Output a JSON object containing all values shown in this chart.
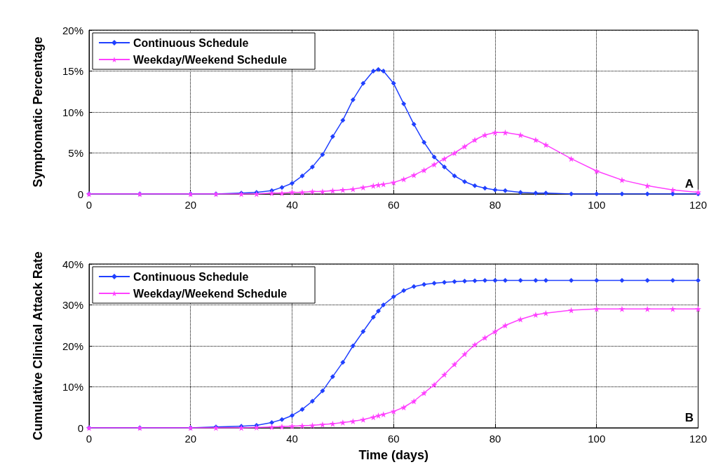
{
  "chart_data": [
    {
      "type": "line",
      "ylabel": "Symptomatic Percentage",
      "annotations": [
        "A"
      ],
      "x": [
        0,
        10,
        20,
        25,
        30,
        33,
        36,
        38,
        40,
        42,
        44,
        46,
        48,
        50,
        52,
        54,
        56,
        57,
        58,
        60,
        62,
        64,
        66,
        68,
        70,
        72,
        74,
        76,
        78,
        80,
        82,
        85,
        88,
        90,
        95,
        100,
        105,
        110,
        115,
        120
      ],
      "series": [
        {
          "name": "Continuous Schedule",
          "color": "#2040ff",
          "marker": "diamond",
          "values": [
            0,
            0,
            0,
            0,
            0.1,
            0.2,
            0.4,
            0.8,
            1.3,
            2.2,
            3.3,
            4.8,
            7,
            9,
            11.5,
            13.5,
            15,
            15.2,
            15,
            13.5,
            11,
            8.5,
            6.3,
            4.5,
            3.3,
            2.2,
            1.5,
            1,
            0.7,
            0.5,
            0.4,
            0.2,
            0.1,
            0.1,
            0,
            0,
            0,
            0,
            0,
            0
          ]
        },
        {
          "name": "Weekday/Weekend Schedule",
          "color": "#ff40ff",
          "marker": "star",
          "values": [
            0,
            0,
            0,
            0,
            0,
            0,
            0.1,
            0.1,
            0.2,
            0.2,
            0.3,
            0.3,
            0.4,
            0.5,
            0.6,
            0.8,
            1,
            1.1,
            1.2,
            1.4,
            1.8,
            2.3,
            2.9,
            3.6,
            4.3,
            5,
            5.8,
            6.6,
            7.2,
            7.5,
            7.5,
            7.2,
            6.6,
            6,
            4.3,
            2.8,
            1.7,
            1,
            0.5,
            0.2
          ]
        }
      ],
      "xlim": [
        0,
        120
      ],
      "xticks": [
        0,
        20,
        40,
        60,
        80,
        100,
        120
      ],
      "ylim": [
        0,
        20
      ],
      "yticks": [
        0,
        {
          "value": 5,
          "label": "5%"
        },
        {
          "value": 10,
          "label": "10%"
        },
        {
          "value": 15,
          "label": "15%"
        },
        {
          "value": 20,
          "label": "20%"
        }
      ],
      "grid": true,
      "legend": "top left",
      "line_style": "solid"
    },
    {
      "type": "line",
      "xlabel": "Time (days)",
      "ylabel": "Cumulative Clinical Attack Rate",
      "annotations": [
        "B"
      ],
      "x": [
        0,
        10,
        20,
        25,
        30,
        33,
        36,
        38,
        40,
        42,
        44,
        46,
        48,
        50,
        52,
        54,
        56,
        57,
        58,
        60,
        62,
        64,
        66,
        68,
        70,
        72,
        74,
        76,
        78,
        80,
        82,
        85,
        88,
        90,
        95,
        100,
        105,
        110,
        115,
        120
      ],
      "series": [
        {
          "name": "Continuous Schedule",
          "color": "#2040ff",
          "marker": "diamond",
          "values": [
            0,
            0,
            0,
            0.2,
            0.4,
            0.6,
            1.3,
            2,
            3,
            4.5,
            6.5,
            9,
            12.5,
            16,
            20,
            23.5,
            27,
            28.5,
            30,
            32,
            33.5,
            34.5,
            35,
            35.3,
            35.5,
            35.7,
            35.8,
            35.9,
            36,
            36,
            36,
            36,
            36,
            36,
            36,
            36,
            36,
            36,
            36,
            36
          ]
        },
        {
          "name": "Weekday/Weekend Schedule",
          "color": "#ff40ff",
          "marker": "star",
          "values": [
            0,
            0,
            0,
            0,
            0,
            0.1,
            0.2,
            0.3,
            0.4,
            0.5,
            0.6,
            0.8,
            1,
            1.3,
            1.6,
            2,
            2.6,
            3,
            3.3,
            4,
            5,
            6.5,
            8.5,
            10.5,
            13,
            15.5,
            18,
            20.3,
            22,
            23.5,
            25,
            26.5,
            27.6,
            28,
            28.7,
            29,
            29,
            29,
            29,
            29
          ]
        }
      ],
      "xlim": [
        0,
        120
      ],
      "xticks": [
        0,
        20,
        40,
        60,
        80,
        100,
        120
      ],
      "ylim": [
        0,
        40
      ],
      "yticks": [
        0,
        {
          "value": 10,
          "label": "10%"
        },
        {
          "value": 20,
          "label": "20%"
        },
        {
          "value": 30,
          "label": "30%"
        },
        {
          "value": 40,
          "label": "40%"
        }
      ],
      "grid": true,
      "legend": "top left",
      "line_style": "solid"
    }
  ]
}
